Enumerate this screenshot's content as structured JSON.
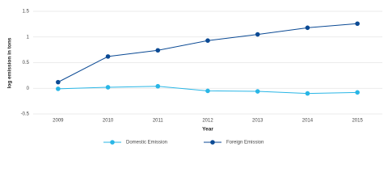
{
  "chart_data": {
    "type": "line",
    "x_label": "Year",
    "y_label": "log emission in tons",
    "categories": [
      "2009",
      "2010",
      "2011",
      "2012",
      "2013",
      "2014",
      "2015"
    ],
    "series": [
      {
        "name": "Domestic Emission",
        "color": "#29b6e6",
        "values": [
          -0.01,
          0.02,
          0.04,
          -0.05,
          -0.06,
          -0.1,
          -0.08
        ]
      },
      {
        "name": "Foreign Emission",
        "color": "#0b4a94",
        "values": [
          0.12,
          0.62,
          0.74,
          0.93,
          1.05,
          1.18,
          1.26
        ]
      }
    ],
    "ylim": [
      -0.5,
      1.5
    ],
    "yticks": [
      -0.5,
      0,
      0.5,
      1,
      1.5
    ],
    "grid": true,
    "legend": "bottom"
  }
}
